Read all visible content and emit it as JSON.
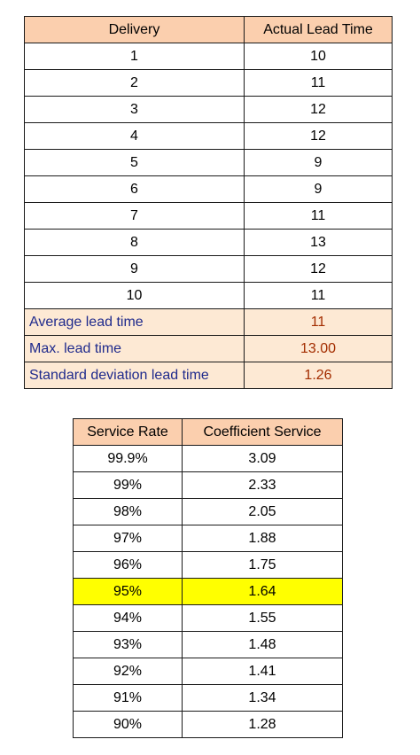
{
  "lead_table": {
    "headers": [
      "Delivery",
      "Actual Lead Time"
    ],
    "rows": [
      [
        "1",
        "10"
      ],
      [
        "2",
        "11"
      ],
      [
        "3",
        "12"
      ],
      [
        "4",
        "12"
      ],
      [
        "5",
        "9"
      ],
      [
        "6",
        "9"
      ],
      [
        "7",
        "11"
      ],
      [
        "8",
        "13"
      ],
      [
        "9",
        "12"
      ],
      [
        "10",
        "11"
      ]
    ],
    "summary": [
      {
        "label": "Average lead time",
        "value": "11"
      },
      {
        "label": "Max. lead time",
        "value": "13.00"
      },
      {
        "label": "Standard deviation lead time",
        "value": "1.26"
      }
    ]
  },
  "service_table": {
    "headers": [
      "Service Rate",
      "Coefficient Service"
    ],
    "rows": [
      [
        "99.9%",
        "3.09"
      ],
      [
        "99%",
        "2.33"
      ],
      [
        "98%",
        "2.05"
      ],
      [
        "97%",
        "1.88"
      ],
      [
        "96%",
        "1.75"
      ],
      [
        "95%",
        "1.64"
      ],
      [
        "94%",
        "1.55"
      ],
      [
        "93%",
        "1.48"
      ],
      [
        "92%",
        "1.41"
      ],
      [
        "91%",
        "1.34"
      ],
      [
        "90%",
        "1.28"
      ]
    ],
    "highlighted_row_index": 5
  },
  "colors": {
    "header_fill": "#fbcfae",
    "summary_fill": "#fde9d4",
    "summary_label_text": "#1f2a8c",
    "summary_value_text": "#a32d00",
    "highlight_fill": "#ffff00"
  }
}
